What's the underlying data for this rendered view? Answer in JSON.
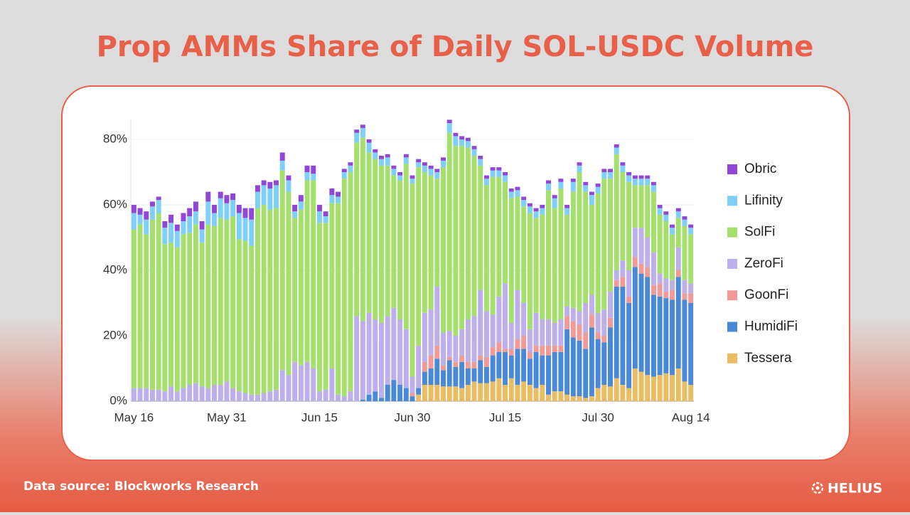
{
  "title": "Prop AMMs Share of Daily SOL-USDC Volume",
  "footer": "Data source: Blockworks Research",
  "brand": "HELIUS",
  "chart_data": {
    "type": "stacked_bar",
    "categories": [
      "May 16",
      null,
      null,
      null,
      null,
      null,
      null,
      null,
      null,
      null,
      null,
      null,
      null,
      null,
      null,
      "May 31",
      null,
      null,
      null,
      null,
      null,
      null,
      null,
      null,
      null,
      null,
      null,
      null,
      null,
      null,
      "Jun 15",
      null,
      null,
      null,
      null,
      null,
      null,
      null,
      null,
      null,
      null,
      null,
      null,
      null,
      null,
      "Jun 30",
      null,
      null,
      null,
      null,
      null,
      null,
      null,
      null,
      null,
      null,
      null,
      null,
      null,
      null,
      "Jul 15",
      null,
      null,
      null,
      null,
      null,
      null,
      null,
      null,
      null,
      null,
      null,
      null,
      null,
      null,
      "Jul 30",
      null,
      null,
      null,
      null,
      null,
      null,
      null,
      null,
      null,
      null,
      null,
      null,
      null,
      null,
      "Aug 14"
    ],
    "ylim": [
      0,
      86
    ],
    "yticks": [
      {
        "value": 0,
        "label": "0%"
      },
      {
        "value": 20,
        "label": "20%"
      },
      {
        "value": 40,
        "label": "40%"
      },
      {
        "value": 60,
        "label": "60%"
      },
      {
        "value": 80,
        "label": "80%"
      }
    ],
    "grid": true,
    "legend": "right",
    "series": [
      {
        "name": "Tessera",
        "color": "#ebbd62",
        "values": [
          0,
          0,
          0,
          0,
          0,
          0,
          0,
          0,
          0,
          0,
          0,
          0,
          0,
          0,
          0,
          0,
          0,
          0,
          0,
          0,
          0,
          0,
          0,
          0,
          0,
          0,
          0,
          0,
          0,
          0,
          0,
          0,
          0,
          0,
          0,
          0,
          0,
          0,
          0,
          0,
          0,
          0,
          0,
          0,
          0,
          0,
          2,
          5,
          5,
          5,
          4.5,
          4.5,
          4.5,
          4,
          5,
          6,
          5.5,
          5.5,
          6,
          7,
          5,
          7,
          5,
          6,
          5,
          4,
          5,
          2,
          3,
          3,
          2,
          1.5,
          1.5,
          1,
          1.5,
          4,
          5,
          4.5,
          7,
          5,
          4,
          10,
          9,
          8,
          7.5,
          8,
          8.5,
          8,
          10,
          6,
          5
        ]
      },
      {
        "name": "HumidiFi",
        "color": "#4a88d8",
        "values": [
          0,
          0,
          0,
          0,
          0,
          0,
          0,
          0,
          0,
          0,
          0,
          0,
          0,
          0,
          0,
          0,
          0,
          0,
          0,
          0,
          0,
          0,
          0,
          0,
          0,
          0,
          0,
          0,
          0,
          0,
          0,
          0,
          0,
          0,
          0,
          0,
          0,
          0.5,
          2,
          3,
          1,
          5,
          6.5,
          5,
          4,
          1.5,
          2,
          4,
          5,
          8,
          5,
          8,
          6,
          8,
          5,
          4,
          7,
          5,
          8,
          8,
          10,
          7,
          11,
          10,
          8,
          11,
          9,
          12,
          12,
          12,
          20,
          18,
          17,
          15,
          21,
          15,
          13,
          18,
          28,
          30,
          26,
          31,
          30,
          30,
          25,
          24,
          23,
          23,
          28,
          25,
          25
        ]
      },
      {
        "name": "GoonFi",
        "color": "#f29a98",
        "values": [
          0,
          0,
          0,
          0,
          0,
          0,
          0,
          0,
          0,
          0,
          0,
          0,
          0,
          0,
          0,
          0,
          0,
          0,
          0,
          0,
          0,
          0,
          0,
          0,
          0,
          0,
          0,
          0,
          0,
          0,
          0,
          0,
          0,
          0,
          0,
          0,
          0,
          0,
          0,
          0,
          0,
          0,
          0,
          0,
          0,
          1,
          0,
          3,
          4,
          4,
          1.5,
          1,
          1.5,
          2,
          2,
          2,
          1.5,
          3,
          2.5,
          3,
          1,
          2,
          3,
          4,
          2,
          2,
          3,
          3,
          2,
          2,
          4,
          5,
          5,
          5,
          4,
          2,
          2,
          3,
          2,
          3,
          2,
          3,
          3,
          3,
          3,
          4,
          2,
          3,
          2,
          2,
          3
        ]
      },
      {
        "name": "ZeroFi",
        "color": "#bcafec",
        "values": [
          4,
          4,
          4,
          3.5,
          3.5,
          3,
          4.5,
          3,
          4,
          5,
          5.5,
          4.5,
          4,
          5,
          5,
          6,
          4,
          3,
          2.5,
          2,
          2,
          2.5,
          3,
          3.5,
          9.5,
          8,
          12,
          11,
          12,
          10,
          3,
          3.5,
          10,
          2,
          1.5,
          3,
          26,
          24,
          25,
          22,
          23,
          21,
          22,
          20,
          18,
          5,
          13,
          15,
          14,
          18,
          10,
          8,
          8,
          8,
          13,
          14,
          20,
          14,
          10,
          14,
          20,
          8,
          15,
          10,
          7,
          10,
          8,
          8,
          7,
          8,
          3,
          4,
          4,
          9,
          6,
          6,
          8,
          8,
          3,
          5,
          8,
          9,
          11,
          9,
          10,
          3,
          4,
          3,
          7,
          4,
          3
        ]
      },
      {
        "name": "SolFi",
        "color": "#a6e06c",
        "values": [
          48.5,
          50,
          47,
          52,
          54,
          45,
          44,
          44,
          47,
          46.5,
          48.5,
          44,
          50,
          48.5,
          51,
          49.5,
          52.5,
          46.5,
          46.5,
          45.5,
          57,
          57.5,
          55.5,
          55.5,
          61,
          56,
          44,
          47.5,
          55.5,
          57.5,
          51.5,
          51,
          50.5,
          58.5,
          66.5,
          67,
          53,
          56,
          49,
          49,
          48,
          46,
          40.5,
          42.5,
          50.5,
          59,
          54.5,
          43,
          41,
          33,
          50.5,
          60.5,
          58,
          56,
          52.5,
          49,
          38,
          38.5,
          42,
          36.5,
          31,
          38,
          28.5,
          29.5,
          35.5,
          29,
          32,
          39.5,
          35,
          40,
          28,
          35.5,
          42.5,
          34,
          27.5,
          36.5,
          40,
          34.5,
          35.5,
          27,
          27,
          13,
          13,
          16,
          18.5,
          18,
          17.5,
          14,
          9,
          16.5,
          15
        ]
      },
      {
        "name": "Lifinity",
        "color": "#7fd0f8",
        "values": [
          5,
          3,
          4.5,
          4,
          4,
          5,
          6,
          5,
          4,
          5,
          4,
          4,
          7,
          4,
          6,
          5,
          5,
          8,
          7,
          8,
          5,
          6,
          6.5,
          7,
          3,
          3.5,
          2,
          2.5,
          2.5,
          2,
          3.5,
          2,
          2.5,
          2,
          2,
          2,
          3,
          3,
          3,
          2,
          2,
          2.5,
          2,
          1.5,
          2,
          1.5,
          1.5,
          2,
          2,
          2,
          2,
          3,
          3,
          2,
          2,
          2,
          2,
          2,
          2,
          2,
          2,
          2,
          2,
          2,
          2,
          2,
          2,
          2,
          3,
          2,
          2,
          3,
          2,
          2,
          3,
          2,
          2,
          2,
          2,
          2,
          2,
          2,
          2,
          2,
          2,
          2,
          2,
          2,
          2,
          2,
          2
        ]
      },
      {
        "name": "Obric",
        "color": "#9146d8",
        "values": [
          2.5,
          2,
          2.5,
          1.5,
          1,
          2,
          2.5,
          2,
          2.5,
          2.5,
          3,
          2.5,
          3,
          2.5,
          2,
          2.5,
          2,
          2.5,
          3,
          3.5,
          2,
          1.5,
          2,
          1.5,
          2.5,
          1.5,
          2,
          2,
          2,
          2.5,
          2,
          1.5,
          2,
          1.5,
          1,
          1,
          1,
          1,
          1,
          1,
          1,
          1,
          1,
          1,
          1,
          1,
          1,
          1,
          1,
          1,
          1,
          1,
          1,
          1,
          1,
          1,
          1,
          1,
          1,
          1,
          1,
          1,
          1,
          1,
          1,
          1,
          1,
          1,
          1,
          1,
          1,
          1,
          1,
          1,
          1,
          1,
          1,
          1,
          1,
          1,
          1,
          1,
          1,
          1,
          1,
          1,
          1,
          1,
          1,
          1,
          1
        ]
      }
    ]
  }
}
